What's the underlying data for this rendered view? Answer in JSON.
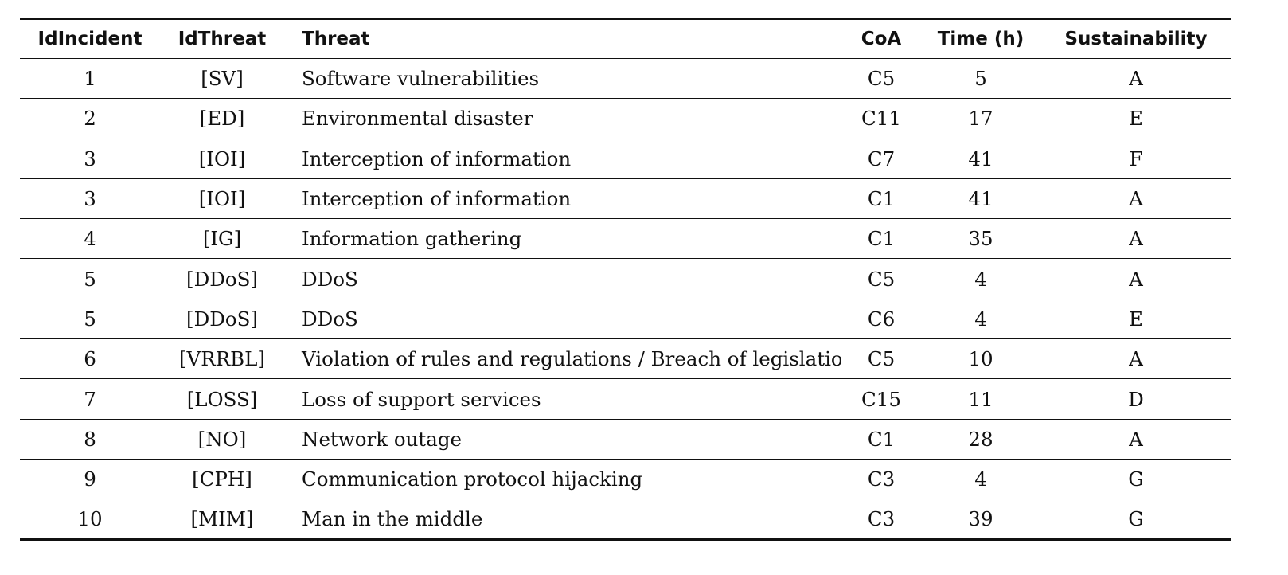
{
  "table": {
    "headers": [
      "IdIncident",
      "IdThreat",
      "Threat",
      "CoA",
      "Time (h)",
      "Sustainability"
    ],
    "rows": [
      [
        "1",
        "[SV]",
        "Software vulnerabilities",
        "C5",
        "5",
        "A"
      ],
      [
        "2",
        "[ED]",
        "Environmental disaster",
        "C11",
        "17",
        "E"
      ],
      [
        "3",
        "[IOI]",
        "Interception of information",
        "C7",
        "41",
        "F"
      ],
      [
        "3",
        "[IOI]",
        "Interception of information",
        "C1",
        "41",
        "A"
      ],
      [
        "4",
        "[IG]",
        "Information gathering",
        "C1",
        "35",
        "A"
      ],
      [
        "5",
        "[DDoS]",
        "DDoS",
        "C5",
        "4",
        "A"
      ],
      [
        "5",
        "[DDoS]",
        "DDoS",
        "C6",
        "4",
        "E"
      ],
      [
        "6",
        "[VRRBL]",
        "Violation of rules and regulations / Breach of legislation",
        "C5",
        "10",
        "A"
      ],
      [
        "7",
        "[LOSS]",
        "Loss of support services",
        "C15",
        "11",
        "D"
      ],
      [
        "8",
        "[NO]",
        "Network outage",
        "C1",
        "28",
        "A"
      ],
      [
        "9",
        "[CPH]",
        "Communication protocol hijacking",
        "C3",
        "4",
        "G"
      ],
      [
        "10",
        "[MIM]",
        "Man in the middle",
        "C3",
        "39",
        "G"
      ]
    ]
  }
}
